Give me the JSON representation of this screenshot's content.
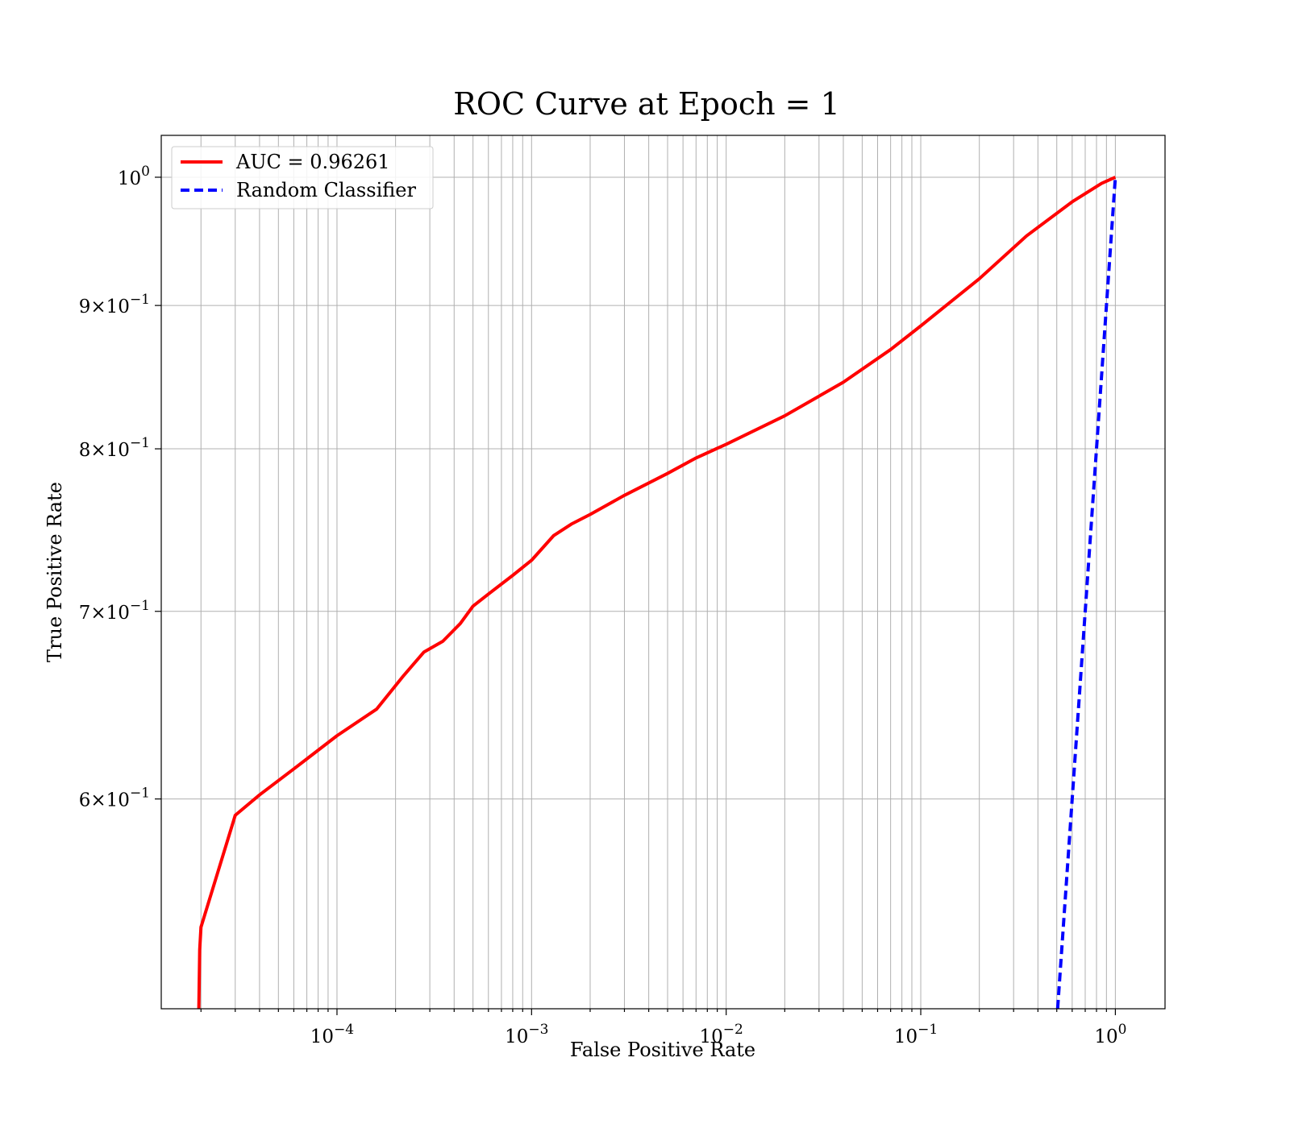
{
  "chart_data": {
    "type": "line",
    "title": "ROC Curve at Epoch = 1",
    "xlabel": "False Positive Rate",
    "ylabel": "True Positive Rate",
    "x_scale": "log",
    "y_scale": "log",
    "xlim": [
      1.25e-05,
      1.8
    ],
    "ylim": [
      0.505,
      1.035
    ],
    "grid": true,
    "grid_minor": true,
    "legend_position": "upper-left",
    "x_ticks": [
      {
        "value": 0.0001,
        "base": "10",
        "exp": "−4"
      },
      {
        "value": 0.001,
        "base": "10",
        "exp": "−3"
      },
      {
        "value": 0.01,
        "base": "10",
        "exp": "−2"
      },
      {
        "value": 0.1,
        "base": "10",
        "exp": "−1"
      },
      {
        "value": 1,
        "base": "10",
        "exp": "0"
      }
    ],
    "y_ticks": [
      {
        "value": 0.6,
        "mant": "6",
        "base": "10",
        "exp": "−1"
      },
      {
        "value": 0.7,
        "mant": "7",
        "base": "10",
        "exp": "−1"
      },
      {
        "value": 0.8,
        "mant": "8",
        "base": "10",
        "exp": "−1"
      },
      {
        "value": 0.9,
        "mant": "9",
        "base": "10",
        "exp": "−1"
      },
      {
        "value": 1.0,
        "mant": "",
        "base": "10",
        "exp": "0"
      }
    ],
    "series": [
      {
        "name": "AUC = 0.96261",
        "color": "#ff0000",
        "style": "solid",
        "points": [
          [
            1.95e-05,
            0.505
          ],
          [
            1.97e-05,
            0.53
          ],
          [
            2e-05,
            0.54
          ],
          [
            3e-05,
            0.592
          ],
          [
            4e-05,
            0.602
          ],
          [
            6e-05,
            0.615
          ],
          [
            0.0001,
            0.632
          ],
          [
            0.00016,
            0.646
          ],
          [
            0.00022,
            0.664
          ],
          [
            0.00028,
            0.677
          ],
          [
            0.00035,
            0.683
          ],
          [
            0.00043,
            0.693
          ],
          [
            0.0005,
            0.703
          ],
          [
            0.0006,
            0.71
          ],
          [
            0.0008,
            0.721
          ],
          [
            0.001,
            0.73
          ],
          [
            0.0013,
            0.745
          ],
          [
            0.0016,
            0.752
          ],
          [
            0.002,
            0.758
          ],
          [
            0.003,
            0.77
          ],
          [
            0.005,
            0.784
          ],
          [
            0.007,
            0.794
          ],
          [
            0.01,
            0.803
          ],
          [
            0.02,
            0.822
          ],
          [
            0.04,
            0.845
          ],
          [
            0.07,
            0.868
          ],
          [
            0.1,
            0.885
          ],
          [
            0.2,
            0.92
          ],
          [
            0.35,
            0.953
          ],
          [
            0.6,
            0.98
          ],
          [
            0.85,
            0.995
          ],
          [
            1.0,
            1.0
          ]
        ]
      },
      {
        "name": "Random Classifier",
        "color": "#0000ff",
        "style": "dashed",
        "points": [
          [
            0.505,
            0.505
          ],
          [
            1.0,
            1.0
          ]
        ]
      }
    ]
  }
}
